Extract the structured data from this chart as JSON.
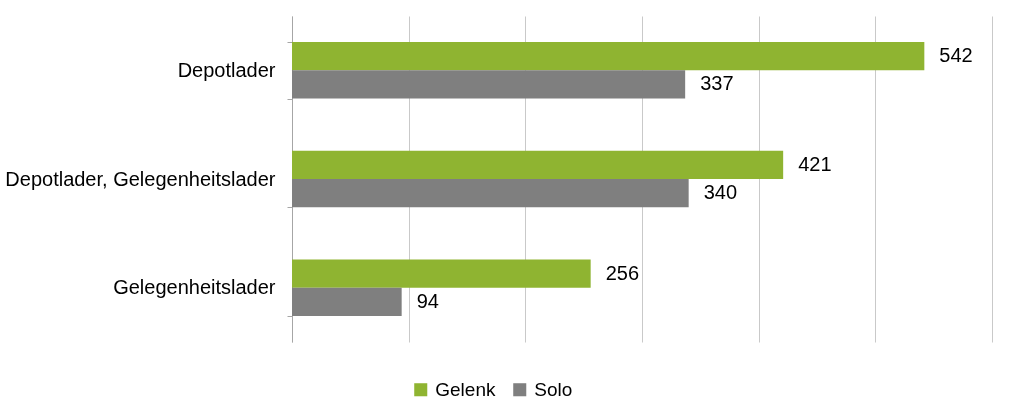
{
  "chart_data": {
    "type": "bar",
    "orientation": "horizontal",
    "categories": [
      "Depotlader",
      "Depotlader, Gelegenheitslader",
      "Gelegenheitslader"
    ],
    "series": [
      {
        "name": "Gelenk",
        "color": "#8fb431",
        "values": [
          542,
          421,
          256
        ]
      },
      {
        "name": "Solo",
        "color": "#7f7f7f",
        "values": [
          337,
          340,
          94
        ]
      }
    ],
    "xlim": [
      0,
      600
    ],
    "xticks": [
      {
        "value": 0,
        "label": null
      },
      {
        "value": 100,
        "label": null
      },
      {
        "value": 200,
        "label": null
      },
      {
        "value": 300,
        "label": null
      },
      {
        "value": 400,
        "label": null
      },
      {
        "value": 500,
        "label": null
      },
      {
        "value": 600,
        "label": null
      }
    ],
    "tick_labels": "y",
    "grid": "x",
    "legend": "bottom",
    "data_labels": true
  }
}
